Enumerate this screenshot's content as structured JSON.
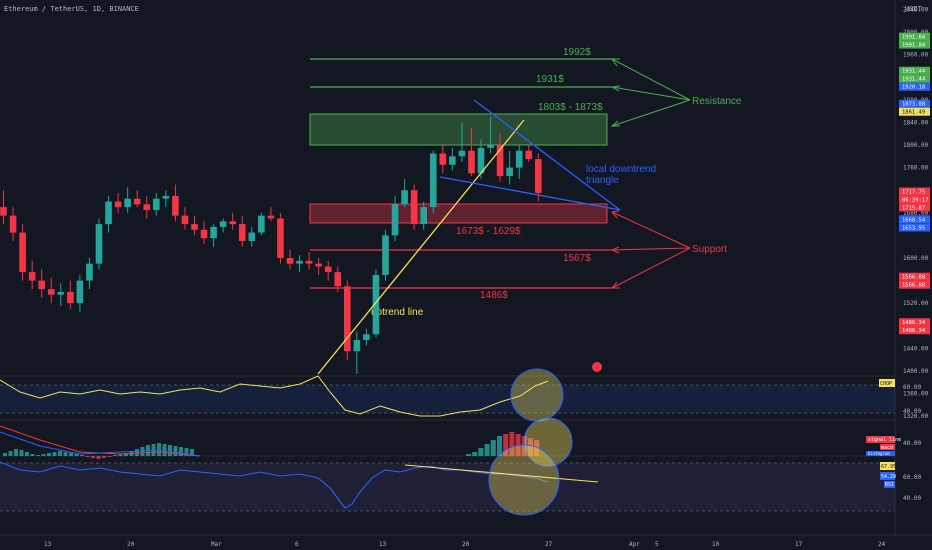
{
  "header": {
    "symbol": "Ethereum / TetherUS, 1D, BINANCE",
    "currency": "USDT"
  },
  "colors": {
    "background": "#131722",
    "up": "#26a69a",
    "down": "#f23645",
    "resistance": "#4caf50",
    "support": "#f23645",
    "uptrend": "#f5e15b",
    "downtrend": "#2962ff",
    "axis_text": "#b2b5be"
  },
  "annotations": {
    "level_1992": "1992$",
    "level_1931": "1931$",
    "zone_resistance": "1803$ - 1873$",
    "resistance": "Resistance",
    "local_triangle_1": "local downtrend",
    "local_triangle_2": "triangle",
    "zone_support": "1673$ - 1629$",
    "support": "Support",
    "level_1567": "1567$",
    "level_1486": "1486$",
    "uptrend": "uptrend line"
  },
  "price_axis_labels": [
    "2080.00",
    "2040.00",
    "2000.00",
    "1960.00",
    "1920.00",
    "1880.00",
    "1840.00",
    "1800.00",
    "1760.00",
    "1720.00",
    "1680.00",
    "1600.00",
    "1560.00",
    "1520.00",
    "1480.00",
    "1440.00",
    "1400.00",
    "1360.00",
    "1320.00"
  ],
  "price_tags": [
    {
      "text": "1991.84",
      "kind": "green"
    },
    {
      "text": "1991.84",
      "kind": "green"
    },
    {
      "text": "1931.44",
      "kind": "green"
    },
    {
      "text": "1931.44",
      "kind": "green"
    },
    {
      "text": "1920.18",
      "kind": "blue"
    },
    {
      "text": "1873.08",
      "kind": "blue"
    },
    {
      "text": "1861.49",
      "kind": "yellow"
    },
    {
      "text": "1717.75",
      "kind": "red"
    },
    {
      "text": "06:39:17",
      "kind": "red"
    },
    {
      "text": "1715.87",
      "kind": "red"
    },
    {
      "text": "1668.54",
      "kind": "blue"
    },
    {
      "text": "1653.95",
      "kind": "blue"
    },
    {
      "text": "1566.88",
      "kind": "red"
    },
    {
      "text": "1566.88",
      "kind": "red"
    },
    {
      "text": "1486.34",
      "kind": "red"
    },
    {
      "text": "1486.34",
      "kind": "red"
    }
  ],
  "time_axis_labels": [
    "13",
    "20",
    "Mar",
    "6",
    "13",
    "20",
    "27",
    "Apr",
    "5",
    "10",
    "17",
    "24"
  ],
  "indicators": {
    "chop": {
      "tag": "CHOP",
      "labels": [
        "60.00",
        "40.00"
      ]
    },
    "macd": {
      "tags": [
        "signal line",
        "macd",
        "histogram"
      ],
      "labels": [
        "40.00"
      ]
    },
    "rsi": {
      "tags": [
        "67.95",
        "54.29",
        "RSI"
      ],
      "labels": [
        "60.00",
        "40.00"
      ]
    }
  },
  "chart_data": {
    "type": "candlestick",
    "title": "Ethereum / TetherUS, 1D, BINANCE",
    "ylim": [
      1300,
      2100
    ],
    "candles": [
      {
        "o": 1690,
        "h": 1720,
        "l": 1660,
        "c": 1675
      },
      {
        "o": 1675,
        "h": 1690,
        "l": 1630,
        "c": 1645
      },
      {
        "o": 1645,
        "h": 1660,
        "l": 1560,
        "c": 1575
      },
      {
        "o": 1575,
        "h": 1595,
        "l": 1545,
        "c": 1560
      },
      {
        "o": 1560,
        "h": 1580,
        "l": 1530,
        "c": 1545
      },
      {
        "o": 1545,
        "h": 1565,
        "l": 1520,
        "c": 1535
      },
      {
        "o": 1535,
        "h": 1555,
        "l": 1515,
        "c": 1540
      },
      {
        "o": 1540,
        "h": 1560,
        "l": 1510,
        "c": 1520
      },
      {
        "o": 1520,
        "h": 1570,
        "l": 1505,
        "c": 1560
      },
      {
        "o": 1560,
        "h": 1600,
        "l": 1545,
        "c": 1590
      },
      {
        "o": 1590,
        "h": 1670,
        "l": 1580,
        "c": 1660
      },
      {
        "o": 1660,
        "h": 1710,
        "l": 1645,
        "c": 1700
      },
      {
        "o": 1700,
        "h": 1715,
        "l": 1680,
        "c": 1690
      },
      {
        "o": 1690,
        "h": 1725,
        "l": 1680,
        "c": 1705
      },
      {
        "o": 1705,
        "h": 1720,
        "l": 1690,
        "c": 1695
      },
      {
        "o": 1695,
        "h": 1710,
        "l": 1670,
        "c": 1685
      },
      {
        "o": 1685,
        "h": 1715,
        "l": 1675,
        "c": 1705
      },
      {
        "o": 1705,
        "h": 1720,
        "l": 1690,
        "c": 1710
      },
      {
        "o": 1710,
        "h": 1730,
        "l": 1665,
        "c": 1675
      },
      {
        "o": 1675,
        "h": 1690,
        "l": 1650,
        "c": 1660
      },
      {
        "o": 1660,
        "h": 1675,
        "l": 1640,
        "c": 1650
      },
      {
        "o": 1650,
        "h": 1665,
        "l": 1625,
        "c": 1635
      },
      {
        "o": 1635,
        "h": 1660,
        "l": 1620,
        "c": 1655
      },
      {
        "o": 1655,
        "h": 1670,
        "l": 1645,
        "c": 1665
      },
      {
        "o": 1665,
        "h": 1680,
        "l": 1650,
        "c": 1660
      },
      {
        "o": 1660,
        "h": 1675,
        "l": 1620,
        "c": 1630
      },
      {
        "o": 1630,
        "h": 1655,
        "l": 1620,
        "c": 1645
      },
      {
        "o": 1645,
        "h": 1680,
        "l": 1640,
        "c": 1675
      },
      {
        "o": 1675,
        "h": 1690,
        "l": 1665,
        "c": 1670
      },
      {
        "o": 1670,
        "h": 1680,
        "l": 1590,
        "c": 1600
      },
      {
        "o": 1600,
        "h": 1615,
        "l": 1580,
        "c": 1590
      },
      {
        "o": 1590,
        "h": 1605,
        "l": 1575,
        "c": 1595
      },
      {
        "o": 1595,
        "h": 1610,
        "l": 1580,
        "c": 1590
      },
      {
        "o": 1590,
        "h": 1600,
        "l": 1570,
        "c": 1585
      },
      {
        "o": 1585,
        "h": 1595,
        "l": 1560,
        "c": 1575
      },
      {
        "o": 1575,
        "h": 1585,
        "l": 1540,
        "c": 1550
      },
      {
        "o": 1550,
        "h": 1560,
        "l": 1420,
        "c": 1435
      },
      {
        "o": 1435,
        "h": 1470,
        "l": 1395,
        "c": 1455
      },
      {
        "o": 1455,
        "h": 1475,
        "l": 1445,
        "c": 1465
      },
      {
        "o": 1465,
        "h": 1580,
        "l": 1460,
        "c": 1570
      },
      {
        "o": 1570,
        "h": 1650,
        "l": 1560,
        "c": 1640
      },
      {
        "o": 1640,
        "h": 1710,
        "l": 1630,
        "c": 1695
      },
      {
        "o": 1695,
        "h": 1740,
        "l": 1690,
        "c": 1720
      },
      {
        "o": 1720,
        "h": 1730,
        "l": 1650,
        "c": 1660
      },
      {
        "o": 1660,
        "h": 1700,
        "l": 1650,
        "c": 1690
      },
      {
        "o": 1690,
        "h": 1790,
        "l": 1680,
        "c": 1785
      },
      {
        "o": 1785,
        "h": 1800,
        "l": 1750,
        "c": 1765
      },
      {
        "o": 1765,
        "h": 1795,
        "l": 1755,
        "c": 1780
      },
      {
        "o": 1780,
        "h": 1840,
        "l": 1770,
        "c": 1790
      },
      {
        "o": 1790,
        "h": 1830,
        "l": 1745,
        "c": 1750
      },
      {
        "o": 1750,
        "h": 1810,
        "l": 1740,
        "c": 1795
      },
      {
        "o": 1795,
        "h": 1850,
        "l": 1785,
        "c": 1800
      },
      {
        "o": 1800,
        "h": 1820,
        "l": 1735,
        "c": 1745
      },
      {
        "o": 1745,
        "h": 1790,
        "l": 1730,
        "c": 1760
      },
      {
        "o": 1760,
        "h": 1800,
        "l": 1740,
        "c": 1790
      },
      {
        "o": 1790,
        "h": 1800,
        "l": 1770,
        "c": 1775
      },
      {
        "o": 1775,
        "h": 1785,
        "l": 1700,
        "c": 1715
      }
    ]
  }
}
